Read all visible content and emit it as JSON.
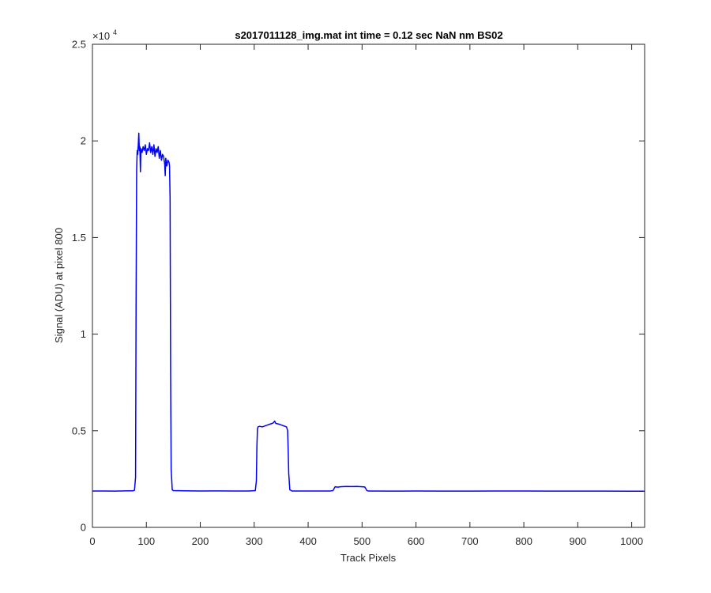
{
  "chart_data": {
    "type": "line",
    "title": "s2017011128_img.mat int time = 0.12 sec  NaN nm BS02",
    "xlabel": "Track Pixels",
    "ylabel": "Signal (ADU) at pixel 800",
    "xlim": [
      0,
      1024
    ],
    "ylim": [
      0,
      25000
    ],
    "xticks": [
      0,
      100,
      200,
      300,
      400,
      500,
      600,
      700,
      800,
      900,
      1000
    ],
    "xtick_labels": [
      "0",
      "100",
      "200",
      "300",
      "400",
      "500",
      "600",
      "700",
      "800",
      "900",
      "1000"
    ],
    "yticks": [
      0,
      5000,
      10000,
      15000,
      20000,
      25000
    ],
    "ytick_labels": [
      "0",
      "0.5",
      "1",
      "1.5",
      "2",
      "2.5"
    ],
    "y_exponent_base": "×10",
    "y_exponent_power": "4",
    "grid": false,
    "series": [
      {
        "color": "#0000ff",
        "points": [
          [
            0,
            1880
          ],
          [
            20,
            1882
          ],
          [
            40,
            1878
          ],
          [
            60,
            1885
          ],
          [
            75,
            1890
          ],
          [
            78,
            1920
          ],
          [
            80,
            2600
          ],
          [
            81,
            12000
          ],
          [
            82,
            18500
          ],
          [
            83,
            19500
          ],
          [
            84,
            19300
          ],
          [
            85,
            19800
          ],
          [
            86,
            20400
          ],
          [
            87,
            19500
          ],
          [
            88,
            19700
          ],
          [
            89,
            18400
          ],
          [
            90,
            19600
          ],
          [
            92,
            19400
          ],
          [
            94,
            19700
          ],
          [
            96,
            19500
          ],
          [
            98,
            19800
          ],
          [
            100,
            19300
          ],
          [
            102,
            19600
          ],
          [
            104,
            19500
          ],
          [
            106,
            19900
          ],
          [
            108,
            19400
          ],
          [
            110,
            19700
          ],
          [
            112,
            19300
          ],
          [
            114,
            19800
          ],
          [
            116,
            19200
          ],
          [
            118,
            19600
          ],
          [
            120,
            19400
          ],
          [
            122,
            19700
          ],
          [
            124,
            19100
          ],
          [
            126,
            19500
          ],
          [
            128,
            19000
          ],
          [
            130,
            19300
          ],
          [
            132,
            19200
          ],
          [
            134,
            18800
          ],
          [
            135,
            18200
          ],
          [
            136,
            19100
          ],
          [
            138,
            18700
          ],
          [
            140,
            19000
          ],
          [
            142,
            18900
          ],
          [
            143,
            18700
          ],
          [
            144,
            17000
          ],
          [
            145,
            8000
          ],
          [
            146,
            3000
          ],
          [
            148,
            1950
          ],
          [
            150,
            1900
          ],
          [
            170,
            1890
          ],
          [
            200,
            1880
          ],
          [
            230,
            1885
          ],
          [
            260,
            1882
          ],
          [
            290,
            1880
          ],
          [
            302,
            1900
          ],
          [
            304,
            2400
          ],
          [
            305,
            4200
          ],
          [
            306,
            5100
          ],
          [
            307,
            5200
          ],
          [
            310,
            5230
          ],
          [
            315,
            5200
          ],
          [
            320,
            5250
          ],
          [
            325,
            5300
          ],
          [
            330,
            5350
          ],
          [
            335,
            5400
          ],
          [
            338,
            5500
          ],
          [
            340,
            5380
          ],
          [
            345,
            5350
          ],
          [
            350,
            5300
          ],
          [
            355,
            5250
          ],
          [
            360,
            5200
          ],
          [
            362,
            5000
          ],
          [
            363,
            4000
          ],
          [
            364,
            2800
          ],
          [
            366,
            1950
          ],
          [
            370,
            1880
          ],
          [
            400,
            1880
          ],
          [
            440,
            1882
          ],
          [
            446,
            1900
          ],
          [
            448,
            2000
          ],
          [
            450,
            2100
          ],
          [
            455,
            2080
          ],
          [
            460,
            2100
          ],
          [
            470,
            2120
          ],
          [
            480,
            2110
          ],
          [
            490,
            2120
          ],
          [
            500,
            2100
          ],
          [
            505,
            2090
          ],
          [
            507,
            2000
          ],
          [
            509,
            1900
          ],
          [
            512,
            1880
          ],
          [
            550,
            1878
          ],
          [
            600,
            1880
          ],
          [
            650,
            1875
          ],
          [
            700,
            1878
          ],
          [
            750,
            1880
          ],
          [
            800,
            1882
          ],
          [
            850,
            1878
          ],
          [
            900,
            1875
          ],
          [
            950,
            1878
          ],
          [
            1000,
            1872
          ],
          [
            1024,
            1870
          ]
        ]
      }
    ]
  }
}
